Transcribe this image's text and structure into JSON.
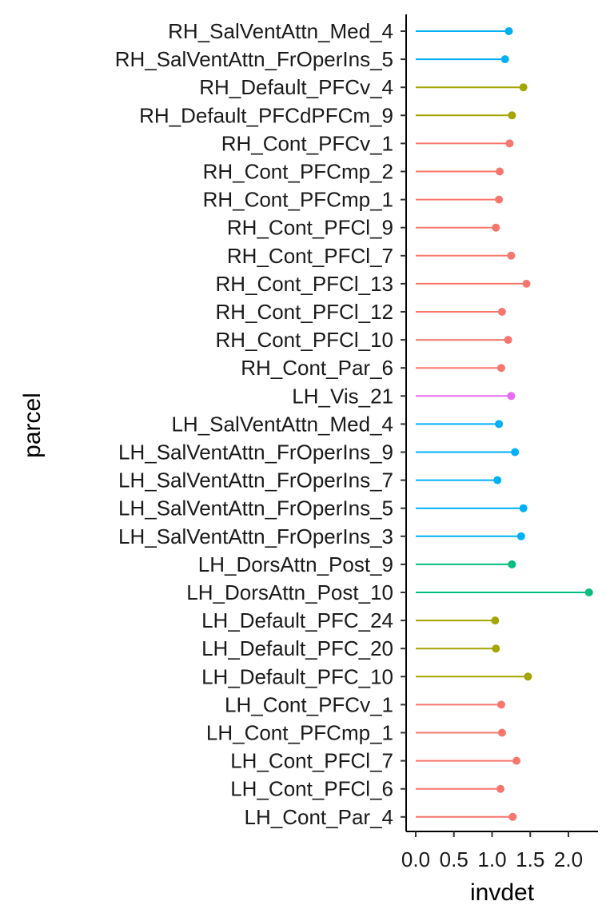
{
  "chart_data": {
    "type": "lollipop",
    "xlabel": "invdet",
    "ylabel": "parcel",
    "xlim": [
      -0.08,
      2.35
    ],
    "x_ticks": [
      0.0,
      0.5,
      1.0,
      1.5,
      2.0
    ],
    "x_tick_labels": [
      "0.0",
      "0.5",
      "1.0",
      "1.5",
      "2.0"
    ],
    "grid": false,
    "legend": "none",
    "colors": {
      "Cont": "#F8766D",
      "Default": "#A3A500",
      "DorsAttn": "#00BF7D",
      "SalVentAttn": "#00B0F6",
      "Vis": "#E76BF3"
    },
    "points": [
      {
        "label": "RH_SalVentAttn_Med_4",
        "value": 1.22,
        "network": "SalVentAttn"
      },
      {
        "label": "RH_SalVentAttn_FrOperIns_5",
        "value": 1.17,
        "network": "SalVentAttn"
      },
      {
        "label": "RH_Default_PFCv_4",
        "value": 1.41,
        "network": "Default"
      },
      {
        "label": "RH_Default_PFCdPFCm_9",
        "value": 1.26,
        "network": "Default"
      },
      {
        "label": "RH_Cont_PFCv_1",
        "value": 1.23,
        "network": "Cont"
      },
      {
        "label": "RH_Cont_PFCmp_2",
        "value": 1.1,
        "network": "Cont"
      },
      {
        "label": "RH_Cont_PFCmp_1",
        "value": 1.09,
        "network": "Cont"
      },
      {
        "label": "RH_Cont_PFCl_9",
        "value": 1.05,
        "network": "Cont"
      },
      {
        "label": "RH_Cont_PFCl_7",
        "value": 1.25,
        "network": "Cont"
      },
      {
        "label": "RH_Cont_PFCl_13",
        "value": 1.45,
        "network": "Cont"
      },
      {
        "label": "RH_Cont_PFCl_12",
        "value": 1.13,
        "network": "Cont"
      },
      {
        "label": "RH_Cont_PFCl_10",
        "value": 1.21,
        "network": "Cont"
      },
      {
        "label": "RH_Cont_Par_6",
        "value": 1.12,
        "network": "Cont"
      },
      {
        "label": "LH_Vis_21",
        "value": 1.25,
        "network": "Vis"
      },
      {
        "label": "LH_SalVentAttn_Med_4",
        "value": 1.09,
        "network": "SalVentAttn"
      },
      {
        "label": "LH_SalVentAttn_FrOperIns_9",
        "value": 1.3,
        "network": "SalVentAttn"
      },
      {
        "label": "LH_SalVentAttn_FrOperIns_7",
        "value": 1.07,
        "network": "SalVentAttn"
      },
      {
        "label": "LH_SalVentAttn_FrOperIns_5",
        "value": 1.41,
        "network": "SalVentAttn"
      },
      {
        "label": "LH_SalVentAttn_FrOperIns_3",
        "value": 1.38,
        "network": "SalVentAttn"
      },
      {
        "label": "LH_DorsAttn_Post_9",
        "value": 1.26,
        "network": "DorsAttn"
      },
      {
        "label": "LH_DorsAttn_Post_10",
        "value": 2.27,
        "network": "DorsAttn"
      },
      {
        "label": "LH_Default_PFC_24",
        "value": 1.04,
        "network": "Default"
      },
      {
        "label": "LH_Default_PFC_20",
        "value": 1.05,
        "network": "Default"
      },
      {
        "label": "LH_Default_PFC_10",
        "value": 1.47,
        "network": "Default"
      },
      {
        "label": "LH_Cont_PFCv_1",
        "value": 1.12,
        "network": "Cont"
      },
      {
        "label": "LH_Cont_PFCmp_1",
        "value": 1.13,
        "network": "Cont"
      },
      {
        "label": "LH_Cont_PFCl_7",
        "value": 1.32,
        "network": "Cont"
      },
      {
        "label": "LH_Cont_PFCl_6",
        "value": 1.11,
        "network": "Cont"
      },
      {
        "label": "LH_Cont_Par_4",
        "value": 1.27,
        "network": "Cont"
      }
    ]
  }
}
